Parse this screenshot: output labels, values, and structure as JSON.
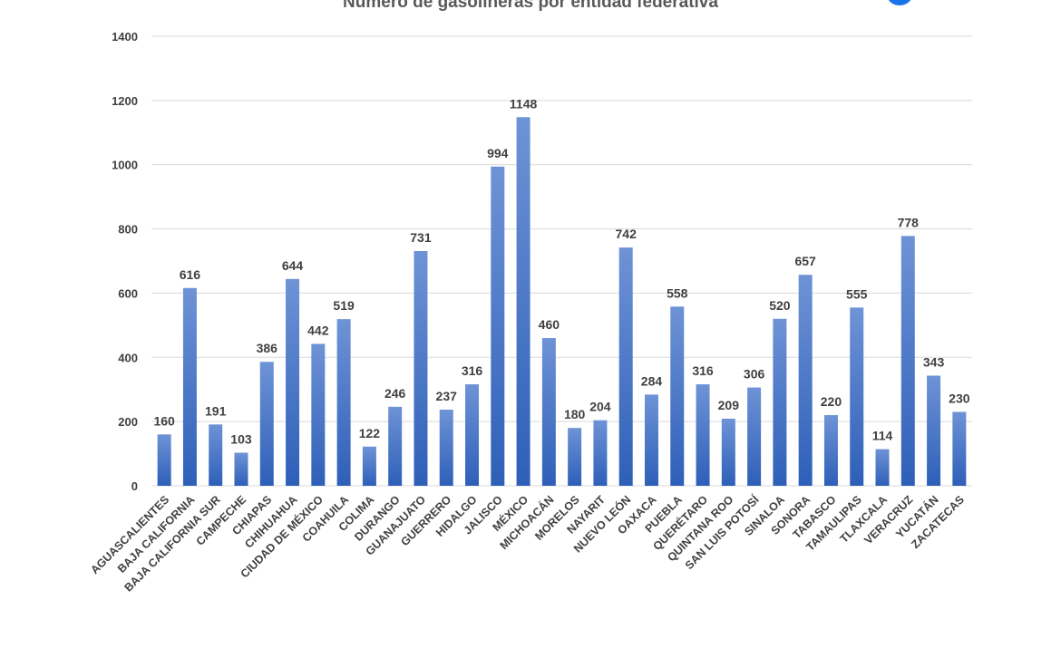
{
  "chart_data": {
    "type": "bar",
    "title": "Número de gasolineras por entidad federativa",
    "xlabel": "",
    "ylabel": "",
    "ylim": [
      0,
      1400
    ],
    "yticks": [
      0,
      200,
      400,
      600,
      800,
      1000,
      1200,
      1400
    ],
    "grid": true,
    "legend": "none",
    "bar_color": "#4472c4",
    "categories": [
      "AGUASCALIENTES",
      "BAJA CALIFORNIA",
      "BAJA CALIFORNIA SUR",
      "CAMPECHE",
      "CHIAPAS",
      "CHIHUAHUA",
      "CIUDAD DE MÉXICO",
      "COAHUILA",
      "COLIMA",
      "DURANGO",
      "GUANAJUATO",
      "GUERRERO",
      "HIDALGO",
      "JALISCO",
      "MÉXICO",
      "MICHOACÁN",
      "MORELOS",
      "NAYARIT",
      "NUEVO LEÓN",
      "OAXACA",
      "PUEBLA",
      "QUERÉTARO",
      "QUINTANA ROO",
      "SAN LUIS POTOSÍ",
      "SINALOA",
      "SONORA",
      "TABASCO",
      "TAMAULIPAS",
      "TLAXCALA",
      "VERACRUZ",
      "YUCATÁN",
      "ZACATECAS"
    ],
    "values": [
      160,
      616,
      191,
      103,
      386,
      644,
      442,
      519,
      122,
      246,
      731,
      237,
      316,
      994,
      1148,
      460,
      180,
      204,
      742,
      284,
      558,
      316,
      209,
      306,
      520,
      657,
      220,
      555,
      114,
      778,
      343,
      230
    ],
    "data_labels": [
      "160",
      "616",
      "191",
      "103",
      "386",
      "644",
      "442",
      "519",
      "122",
      "246",
      "731",
      "237",
      "316",
      "994",
      "1148",
      "460",
      "180",
      "204",
      "742",
      "284",
      "558",
      "316",
      "209",
      "306",
      "520",
      "657",
      "220",
      "555",
      "114",
      "778",
      "343",
      "230"
    ]
  }
}
